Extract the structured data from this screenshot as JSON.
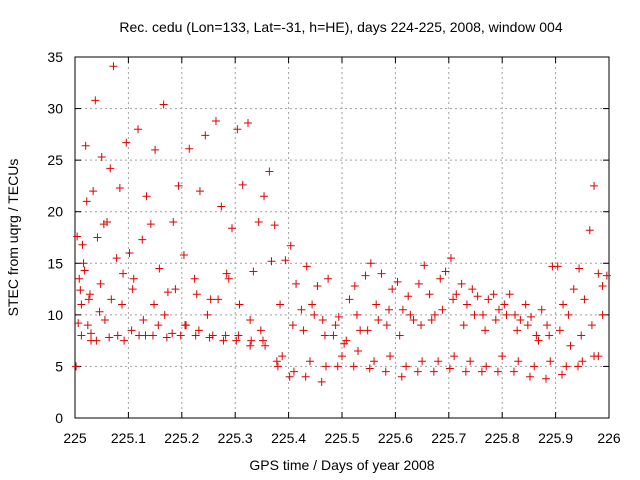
{
  "chart_data": {
    "type": "scatter",
    "title": "Rec. cedu (Lon=133, Lat=-31, h=HE), days 224-225, 2008, window 004",
    "xlabel": "GPS time / Days of year 2008",
    "ylabel": "STEC from uqrg / TECUs",
    "xlim": [
      225,
      226
    ],
    "ylim": [
      0,
      35
    ],
    "x_ticks": [
      225,
      225.1,
      225.2,
      225.3,
      225.4,
      225.5,
      225.6,
      225.7,
      225.8,
      225.9,
      226
    ],
    "x_tick_labels": [
      "225",
      "225.1",
      "225.2",
      "225.3",
      "225.4",
      "225.5",
      "225.6",
      "225.7",
      "225.8",
      "225.9",
      "226"
    ],
    "y_ticks": [
      0,
      5,
      10,
      15,
      20,
      25,
      30,
      35
    ],
    "y_tick_labels": [
      "0",
      "5",
      "10",
      "15",
      "20",
      "25",
      "30",
      "35"
    ],
    "grid": true,
    "marker": "plus",
    "marker_color": "#e00000",
    "series": [
      {
        "name": "STEC",
        "x": [
          225.002,
          225.004,
          225.006,
          225.008,
          225.01,
          225.012,
          225.014,
          225.016,
          225.018,
          225.02,
          225.022,
          225.024,
          225.026,
          225.03,
          225.034,
          225.038,
          225.042,
          225.046,
          225.05,
          225.054,
          225.06,
          225.066,
          225.072,
          225.078,
          225.084,
          225.09,
          225.096,
          225.102,
          225.11,
          225.118,
          225.126,
          225.134,
          225.142,
          225.15,
          225.158,
          225.166,
          225.174,
          225.184,
          225.194,
          225.204,
          225.214,
          225.224,
          225.234,
          225.244,
          225.254,
          225.264,
          225.274,
          225.284,
          225.294,
          225.304,
          225.314,
          225.324,
          225.334,
          225.344,
          225.354,
          225.364,
          225.374,
          225.384,
          225.394,
          225.404,
          225.414,
          225.424,
          225.434,
          225.444,
          225.454,
          225.464,
          225.474,
          225.484,
          225.494,
          225.504,
          225.514,
          225.524,
          225.534,
          225.544,
          225.554,
          225.564,
          225.574,
          225.584,
          225.594,
          225.604,
          225.614,
          225.624,
          225.634,
          225.644,
          225.654,
          225.664,
          225.674,
          225.684,
          225.694,
          225.704,
          225.714,
          225.724,
          225.734,
          225.744,
          225.754,
          225.764,
          225.774,
          225.784,
          225.794,
          225.804,
          225.814,
          225.824,
          225.834,
          225.844,
          225.854,
          225.864,
          225.874,
          225.884,
          225.894,
          225.904,
          225.914,
          225.924,
          225.934,
          225.944,
          225.954,
          225.964,
          225.972,
          225.98,
          225.988,
          225.996,
          225.028,
          225.048,
          225.068,
          225.088,
          225.108,
          225.128,
          225.148,
          225.168,
          225.188,
          225.208,
          225.228,
          225.248,
          225.268,
          225.288,
          225.308,
          225.328,
          225.348,
          225.368,
          225.388,
          225.408,
          225.428,
          225.448,
          225.468,
          225.488,
          225.508,
          225.528,
          225.548,
          225.568,
          225.588,
          225.608,
          225.628,
          225.648,
          225.668,
          225.688,
          225.708,
          225.728,
          225.748,
          225.768,
          225.788,
          225.808,
          225.828,
          225.848,
          225.868,
          225.888,
          225.908,
          225.928,
          225.948,
          225.968,
          225.988,
          225.03,
          225.056,
          225.08,
          225.106,
          225.132,
          225.156,
          225.182,
          225.206,
          225.232,
          225.258,
          225.282,
          225.306,
          225.33,
          225.356,
          225.38,
          225.41,
          225.44,
          225.47,
          225.5,
          225.53,
          225.56,
          225.59,
          225.62,
          225.65,
          225.68,
          225.71,
          225.74,
          225.77,
          225.8,
          225.83,
          225.86,
          225.89,
          225.92,
          225.95,
          225.98,
          225.012,
          225.04,
          225.064,
          225.092,
          225.12,
          225.146,
          225.172,
          225.198,
          225.226,
          225.252,
          225.278,
          225.302,
          225.328,
          225.352,
          225.378,
          225.402,
          225.432,
          225.462,
          225.492,
          225.522,
          225.552,
          225.582,
          225.612,
          225.642,
          225.672,
          225.702,
          225.732,
          225.762,
          225.792,
          225.822,
          225.852,
          225.882,
          225.912,
          225.942,
          225.972
        ],
        "y": [
          5.0,
          17.6,
          9.2,
          13.5,
          12.4,
          11.0,
          16.8,
          15.0,
          14.3,
          26.4,
          21.0,
          9.0,
          11.5,
          7.5,
          22.0,
          30.8,
          17.5,
          10.3,
          25.3,
          18.8,
          19.0,
          24.2,
          34.1,
          15.5,
          22.3,
          14.0,
          26.7,
          16.0,
          13.5,
          28.0,
          17.3,
          21.5,
          18.8,
          26.0,
          14.5,
          30.4,
          12.2,
          19.0,
          22.5,
          15.8,
          26.1,
          13.5,
          22.0,
          27.4,
          11.5,
          28.8,
          20.5,
          14.0,
          18.4,
          28.0,
          22.6,
          28.6,
          14.2,
          19.0,
          21.5,
          23.9,
          18.7,
          11.0,
          15.3,
          16.7,
          13.0,
          10.5,
          14.7,
          11.0,
          12.8,
          9.5,
          13.5,
          8.0,
          9.8,
          7.2,
          11.5,
          12.8,
          8.5,
          13.8,
          15.0,
          11.0,
          14.0,
          9.0,
          12.5,
          13.2,
          10.5,
          11.8,
          9.5,
          13.0,
          14.8,
          12.0,
          10.0,
          13.5,
          14.2,
          15.5,
          12.0,
          13.0,
          11.0,
          12.5,
          11.8,
          10.0,
          11.5,
          12.0,
          10.5,
          11.0,
          12.0,
          10.0,
          9.5,
          11.0,
          9.8,
          8.0,
          10.5,
          9.0,
          14.7,
          14.7,
          11.0,
          10.0,
          12.5,
          14.5,
          11.5,
          18.2,
          22.5,
          14.0,
          12.8,
          13.8,
          12.0,
          13.0,
          11.5,
          11.0,
          12.5,
          9.5,
          11.0,
          10.0,
          12.5,
          9.0,
          12.0,
          10.0,
          11.5,
          13.5,
          11.0,
          9.5,
          8.5,
          15.2,
          6.0,
          9.0,
          8.5,
          10.0,
          8.0,
          9.0,
          7.5,
          10.0,
          8.5,
          9.5,
          10.5,
          8.0,
          10.0,
          9.0,
          9.5,
          10.5,
          11.5,
          9.0,
          10.0,
          8.5,
          9.5,
          10.0,
          8.5,
          9.0,
          7.5,
          8.0,
          8.5,
          7.0,
          8.0,
          9.0,
          10.0,
          8.2,
          9.5,
          8.0,
          8.5,
          8.0,
          9.0,
          8.2,
          9.0,
          8.5,
          8.0,
          8.0,
          8.0,
          7.5,
          7.0,
          5.0,
          4.5,
          5.5,
          5.0,
          6.0,
          6.5,
          5.5,
          6.0,
          5.0,
          5.5,
          5.5,
          6.0,
          5.5,
          5.0,
          6.0,
          5.5,
          5.0,
          5.5,
          5.0,
          5.5,
          6.0,
          8.0,
          7.5,
          7.8,
          7.5,
          8.0,
          8.0,
          7.8,
          8.0,
          8.0,
          7.8,
          7.5,
          7.5,
          7.0,
          7.5,
          5.5,
          4.0,
          4.0,
          3.5,
          5.0,
          5.0,
          4.8,
          4.5,
          4.0,
          4.5,
          4.5,
          4.8,
          4.5,
          4.5,
          4.5,
          4.5,
          4.0,
          3.8,
          4.2,
          5.0,
          6.0
        ]
      }
    ]
  }
}
